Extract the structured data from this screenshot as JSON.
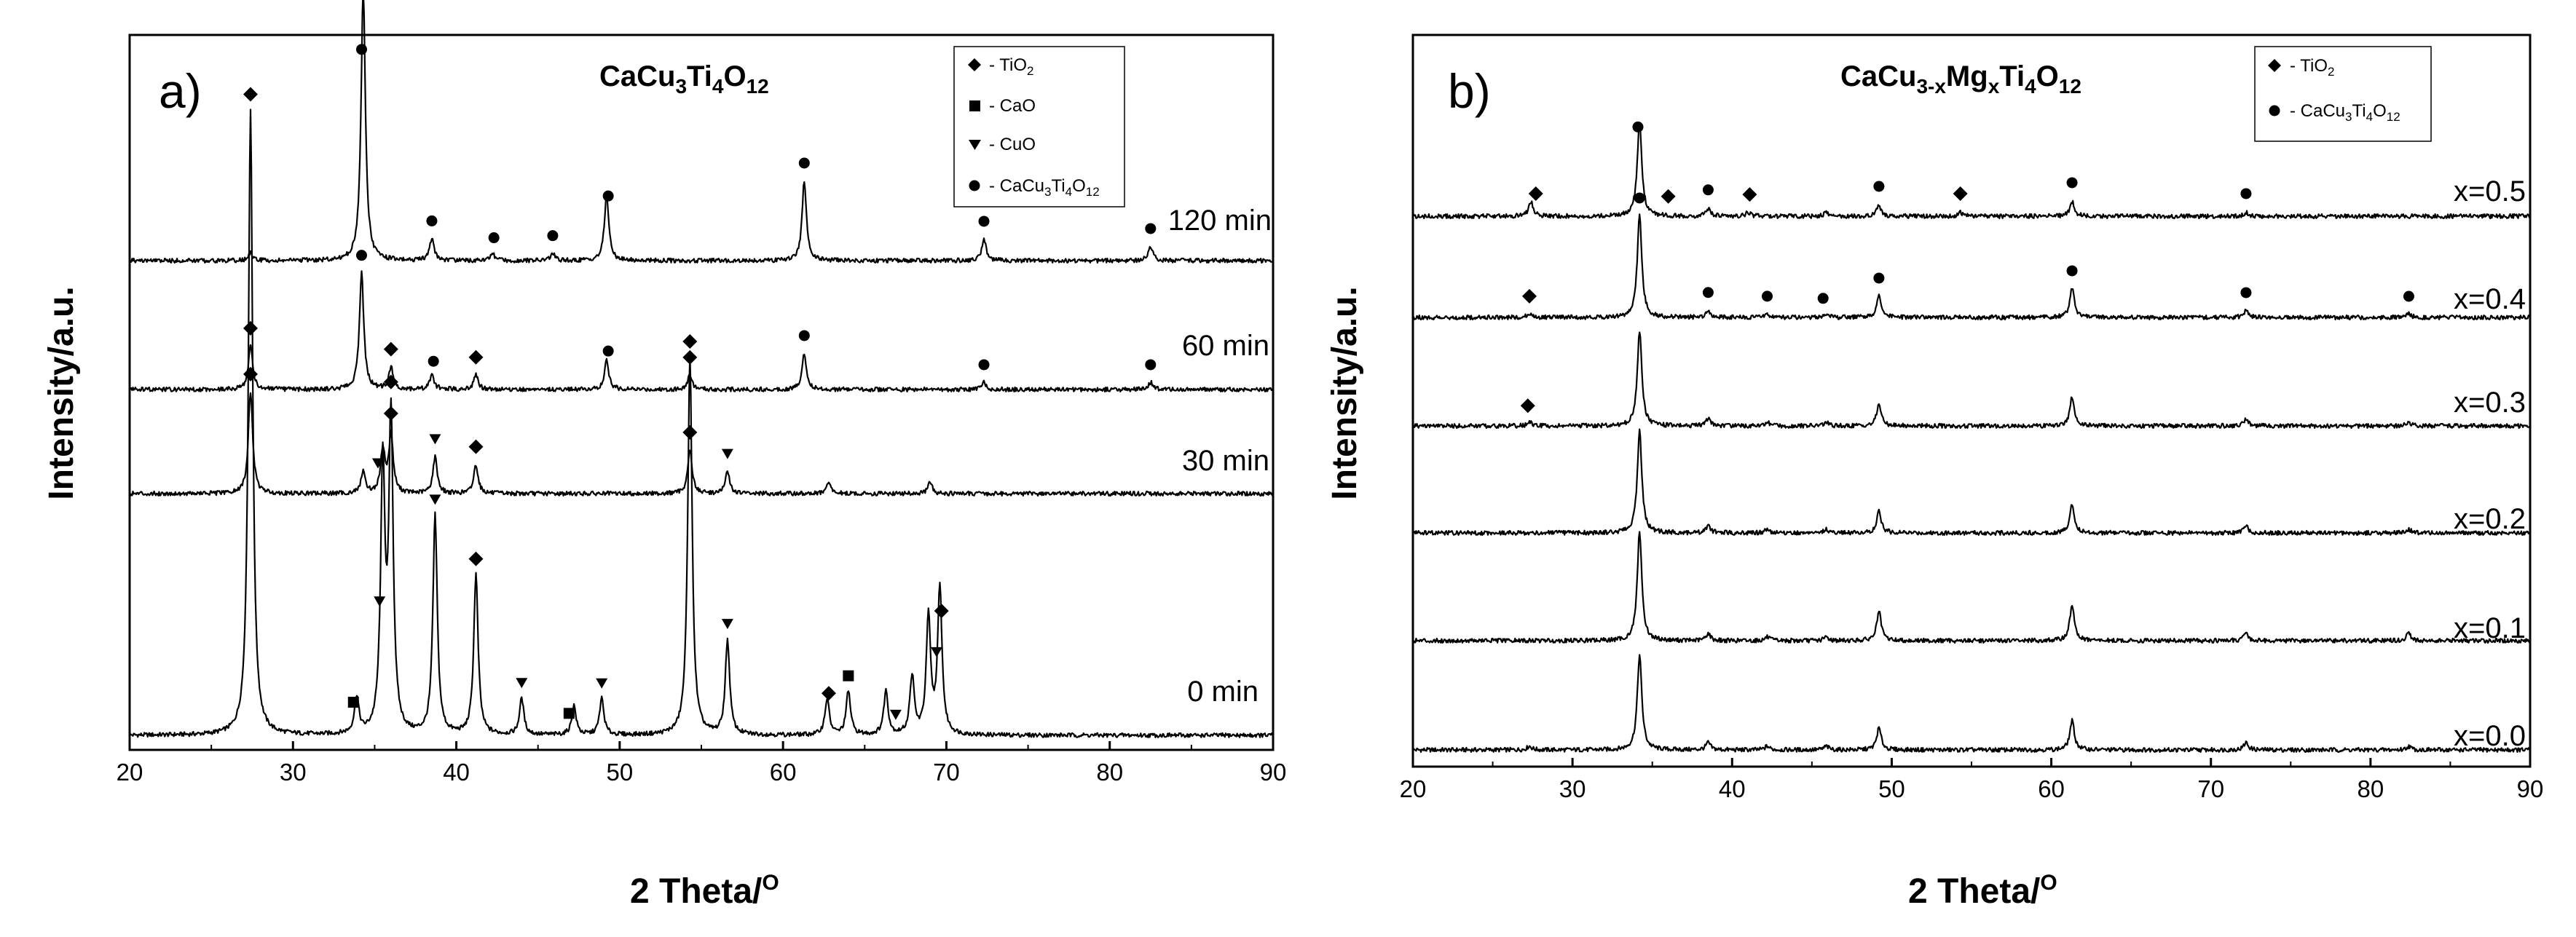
{
  "chart_data": [
    {
      "type": "line",
      "panel_label": "a)",
      "title": "CaCu3Ti4O12",
      "title_parts": {
        "a": "CaCu",
        "b": "3",
        "c": "Ti",
        "d": "4",
        "e": "O",
        "f": "12"
      },
      "xlabel": "2 Theta/",
      "xlabel_sup": "O",
      "ylabel": "Intensity/a.u.",
      "xlim": [
        20,
        90
      ],
      "xticks": [
        "20",
        "30",
        "40",
        "50",
        "60",
        "70",
        "80",
        "90"
      ],
      "legend": {
        "position": "top-right",
        "entries": [
          {
            "marker": "diamond",
            "label": "- TiO",
            "sub": "2"
          },
          {
            "marker": "square",
            "label": "- CaO"
          },
          {
            "marker": "triangle",
            "label": "- CuO"
          },
          {
            "marker": "circle",
            "label": "- CaCu",
            "sub": "3",
            "label2": "Ti",
            "sub2": "4",
            "label3": "O",
            "sub3": "12"
          }
        ]
      },
      "series": [
        {
          "name": "0 min",
          "peaks": [
            {
              "x": 27.4,
              "h": 0.86
            },
            {
              "x": 33.9,
              "h": 0.05
            },
            {
              "x": 35.5,
              "h": 0.36
            },
            {
              "x": 36.0,
              "h": 0.43
            },
            {
              "x": 38.7,
              "h": 0.3
            },
            {
              "x": 41.2,
              "h": 0.22
            },
            {
              "x": 44.0,
              "h": 0.05
            },
            {
              "x": 47.2,
              "h": 0.04
            },
            {
              "x": 48.9,
              "h": 0.05
            },
            {
              "x": 54.3,
              "h": 0.52
            },
            {
              "x": 56.6,
              "h": 0.13
            },
            {
              "x": 62.7,
              "h": 0.05
            },
            {
              "x": 64.0,
              "h": 0.06
            },
            {
              "x": 66.3,
              "h": 0.06
            },
            {
              "x": 67.9,
              "h": 0.08
            },
            {
              "x": 68.9,
              "h": 0.16
            },
            {
              "x": 69.6,
              "h": 0.2
            }
          ],
          "markers": [
            {
              "x": 27.4,
              "m": "diamond"
            },
            {
              "x": 33.7,
              "m": "square"
            },
            {
              "x": 35.3,
              "m": "triangle"
            },
            {
              "x": 36.0,
              "m": "diamond"
            },
            {
              "x": 38.7,
              "m": "triangle"
            },
            {
              "x": 41.2,
              "m": "diamond"
            },
            {
              "x": 44.0,
              "m": "triangle"
            },
            {
              "x": 46.9,
              "m": "square"
            },
            {
              "x": 48.9,
              "m": "triangle"
            },
            {
              "x": 54.3,
              "m": "diamond"
            },
            {
              "x": 56.6,
              "m": "triangle"
            },
            {
              "x": 62.8,
              "m": "diamond"
            },
            {
              "x": 64.0,
              "m": "square"
            },
            {
              "x": 66.9,
              "m": "triangle"
            },
            {
              "x": 69.4,
              "m": "triangle"
            },
            {
              "x": 69.7,
              "m": "diamond"
            }
          ]
        },
        {
          "name": "30 min",
          "peaks": [
            {
              "x": 27.4,
              "h": 0.14
            },
            {
              "x": 34.3,
              "h": 0.03
            },
            {
              "x": 35.5,
              "h": 0.06
            },
            {
              "x": 36.0,
              "h": 0.08
            },
            {
              "x": 38.7,
              "h": 0.05
            },
            {
              "x": 41.2,
              "h": 0.04
            },
            {
              "x": 54.3,
              "h": 0.06
            },
            {
              "x": 56.6,
              "h": 0.03
            },
            {
              "x": 62.8,
              "h": 0.015
            },
            {
              "x": 69.0,
              "h": 0.015
            }
          ],
          "markers": [
            {
              "x": 27.4,
              "m": "diamond"
            },
            {
              "x": 35.2,
              "m": "triangle"
            },
            {
              "x": 36.0,
              "m": "diamond"
            },
            {
              "x": 38.7,
              "m": "triangle"
            },
            {
              "x": 41.2,
              "m": "diamond"
            },
            {
              "x": 54.3,
              "m": "diamond"
            },
            {
              "x": 56.6,
              "m": "triangle"
            }
          ]
        },
        {
          "name": "60 min",
          "peaks": [
            {
              "x": 27.4,
              "h": 0.06
            },
            {
              "x": 34.2,
              "h": 0.16
            },
            {
              "x": 36.0,
              "h": 0.03
            },
            {
              "x": 38.5,
              "h": 0.02
            },
            {
              "x": 41.2,
              "h": 0.02
            },
            {
              "x": 49.2,
              "h": 0.04
            },
            {
              "x": 54.3,
              "h": 0.02
            },
            {
              "x": 61.3,
              "h": 0.05
            },
            {
              "x": 72.3,
              "h": 0.01
            },
            {
              "x": 82.5,
              "h": 0.01
            }
          ],
          "markers": [
            {
              "x": 27.4,
              "m": "diamond"
            },
            {
              "x": 34.2,
              "m": "circle"
            },
            {
              "x": 36.0,
              "m": "diamond"
            },
            {
              "x": 38.6,
              "m": "circle"
            },
            {
              "x": 41.2,
              "m": "diamond"
            },
            {
              "x": 49.3,
              "m": "circle"
            },
            {
              "x": 54.3,
              "m": "diamond"
            },
            {
              "x": 61.3,
              "m": "circle"
            },
            {
              "x": 72.3,
              "m": "circle"
            },
            {
              "x": 82.5,
              "m": "circle"
            }
          ]
        },
        {
          "name": "120 min",
          "peaks": [
            {
              "x": 27.4,
              "h": 0.01
            },
            {
              "x": 34.3,
              "h": 0.37
            },
            {
              "x": 38.5,
              "h": 0.03
            },
            {
              "x": 42.2,
              "h": 0.01
            },
            {
              "x": 45.9,
              "h": 0.01
            },
            {
              "x": 49.2,
              "h": 0.09
            },
            {
              "x": 61.3,
              "h": 0.11
            },
            {
              "x": 72.3,
              "h": 0.03
            },
            {
              "x": 82.5,
              "h": 0.02
            }
          ],
          "markers": [
            {
              "x": 34.2,
              "m": "circle"
            },
            {
              "x": 38.5,
              "m": "circle"
            },
            {
              "x": 42.3,
              "m": "circle"
            },
            {
              "x": 45.9,
              "m": "circle"
            },
            {
              "x": 49.3,
              "m": "circle"
            },
            {
              "x": 61.3,
              "m": "circle"
            },
            {
              "x": 72.3,
              "m": "circle"
            },
            {
              "x": 82.5,
              "m": "circle"
            }
          ]
        }
      ]
    },
    {
      "type": "line",
      "panel_label": "b)",
      "title": "CaCu3-xMgxTi4O12",
      "title_parts": {
        "a": "CaCu",
        "b": "3-x",
        "c": "Mg",
        "d": "x",
        "e": "Ti",
        "f": "4",
        "g": "O",
        "h": "12"
      },
      "xlabel": "2 Theta/",
      "xlabel_sup": "O",
      "ylabel": "Intensity/a.u.",
      "xlim": [
        20,
        90
      ],
      "xticks": [
        "20",
        "30",
        "40",
        "50",
        "60",
        "70",
        "80",
        "90"
      ],
      "legend": {
        "position": "top-right",
        "entries": [
          {
            "marker": "diamond",
            "label": "- TiO",
            "sub": "2"
          },
          {
            "marker": "circle",
            "label": "- CaCu",
            "sub": "3",
            "label2": "Ti",
            "sub2": "4",
            "label3": "O",
            "sub3": "12"
          }
        ]
      },
      "series": [
        {
          "name": "x=0.0",
          "peaks": [
            {
              "x": 27.3,
              "h": 0.005
            },
            {
              "x": 34.2,
              "h": 0.13
            },
            {
              "x": 38.5,
              "h": 0.01
            },
            {
              "x": 42.2,
              "h": 0.005
            },
            {
              "x": 45.9,
              "h": 0.005
            },
            {
              "x": 49.2,
              "h": 0.03
            },
            {
              "x": 61.3,
              "h": 0.04
            },
            {
              "x": 72.2,
              "h": 0.01
            },
            {
              "x": 82.4,
              "h": 0.005
            }
          ],
          "markers": []
        },
        {
          "name": "x=0.1",
          "peaks": [
            {
              "x": 34.2,
              "h": 0.15
            },
            {
              "x": 38.5,
              "h": 0.01
            },
            {
              "x": 42.2,
              "h": 0.005
            },
            {
              "x": 45.9,
              "h": 0.005
            },
            {
              "x": 49.2,
              "h": 0.04
            },
            {
              "x": 61.3,
              "h": 0.05
            },
            {
              "x": 72.2,
              "h": 0.01
            },
            {
              "x": 82.4,
              "h": 0.01
            }
          ],
          "markers": []
        },
        {
          "name": "x=0.2",
          "peaks": [
            {
              "x": 34.2,
              "h": 0.14
            },
            {
              "x": 38.5,
              "h": 0.01
            },
            {
              "x": 42.2,
              "h": 0.005
            },
            {
              "x": 45.9,
              "h": 0.005
            },
            {
              "x": 49.2,
              "h": 0.03
            },
            {
              "x": 61.3,
              "h": 0.04
            },
            {
              "x": 72.2,
              "h": 0.01
            },
            {
              "x": 82.4,
              "h": 0.005
            }
          ],
          "markers": []
        },
        {
          "name": "x=0.3",
          "peaks": [
            {
              "x": 27.3,
              "h": 0.005
            },
            {
              "x": 34.2,
              "h": 0.13
            },
            {
              "x": 38.5,
              "h": 0.01
            },
            {
              "x": 42.2,
              "h": 0.005
            },
            {
              "x": 45.9,
              "h": 0.005
            },
            {
              "x": 49.2,
              "h": 0.03
            },
            {
              "x": 61.3,
              "h": 0.04
            },
            {
              "x": 72.2,
              "h": 0.01
            },
            {
              "x": 82.4,
              "h": 0.005
            }
          ],
          "markers": [
            {
              "x": 27.2,
              "m": "diamond"
            }
          ]
        },
        {
          "name": "x=0.4",
          "peaks": [
            {
              "x": 27.3,
              "h": 0.005
            },
            {
              "x": 34.2,
              "h": 0.14
            },
            {
              "x": 38.5,
              "h": 0.01
            },
            {
              "x": 42.2,
              "h": 0.005
            },
            {
              "x": 45.9,
              "h": 0.005
            },
            {
              "x": 49.2,
              "h": 0.03
            },
            {
              "x": 61.3,
              "h": 0.04
            },
            {
              "x": 72.2,
              "h": 0.01
            },
            {
              "x": 82.4,
              "h": 0.005
            }
          ],
          "markers": [
            {
              "x": 27.3,
              "m": "diamond"
            },
            {
              "x": 34.2,
              "m": "circle"
            },
            {
              "x": 38.5,
              "m": "circle"
            },
            {
              "x": 42.2,
              "m": "circle"
            },
            {
              "x": 45.7,
              "m": "circle"
            },
            {
              "x": 49.2,
              "m": "circle"
            },
            {
              "x": 61.3,
              "m": "circle"
            },
            {
              "x": 72.2,
              "m": "circle"
            },
            {
              "x": 82.4,
              "m": "circle"
            }
          ]
        },
        {
          "name": "x=0.5",
          "peaks": [
            {
              "x": 27.4,
              "h": 0.02
            },
            {
              "x": 34.2,
              "h": 0.13
            },
            {
              "x": 38.5,
              "h": 0.01
            },
            {
              "x": 41.0,
              "h": 0.005
            },
            {
              "x": 45.9,
              "h": 0.005
            },
            {
              "x": 49.2,
              "h": 0.015
            },
            {
              "x": 54.3,
              "h": 0.005
            },
            {
              "x": 61.3,
              "h": 0.02
            },
            {
              "x": 72.2,
              "h": 0.005
            }
          ],
          "markers": [
            {
              "x": 27.7,
              "m": "diamond"
            },
            {
              "x": 34.1,
              "m": "circle"
            },
            {
              "x": 36.0,
              "m": "diamond"
            },
            {
              "x": 38.5,
              "m": "circle"
            },
            {
              "x": 41.1,
              "m": "diamond"
            },
            {
              "x": 49.2,
              "m": "circle"
            },
            {
              "x": 54.3,
              "m": "diamond"
            },
            {
              "x": 61.3,
              "m": "circle"
            },
            {
              "x": 72.2,
              "m": "circle"
            }
          ]
        }
      ]
    }
  ]
}
